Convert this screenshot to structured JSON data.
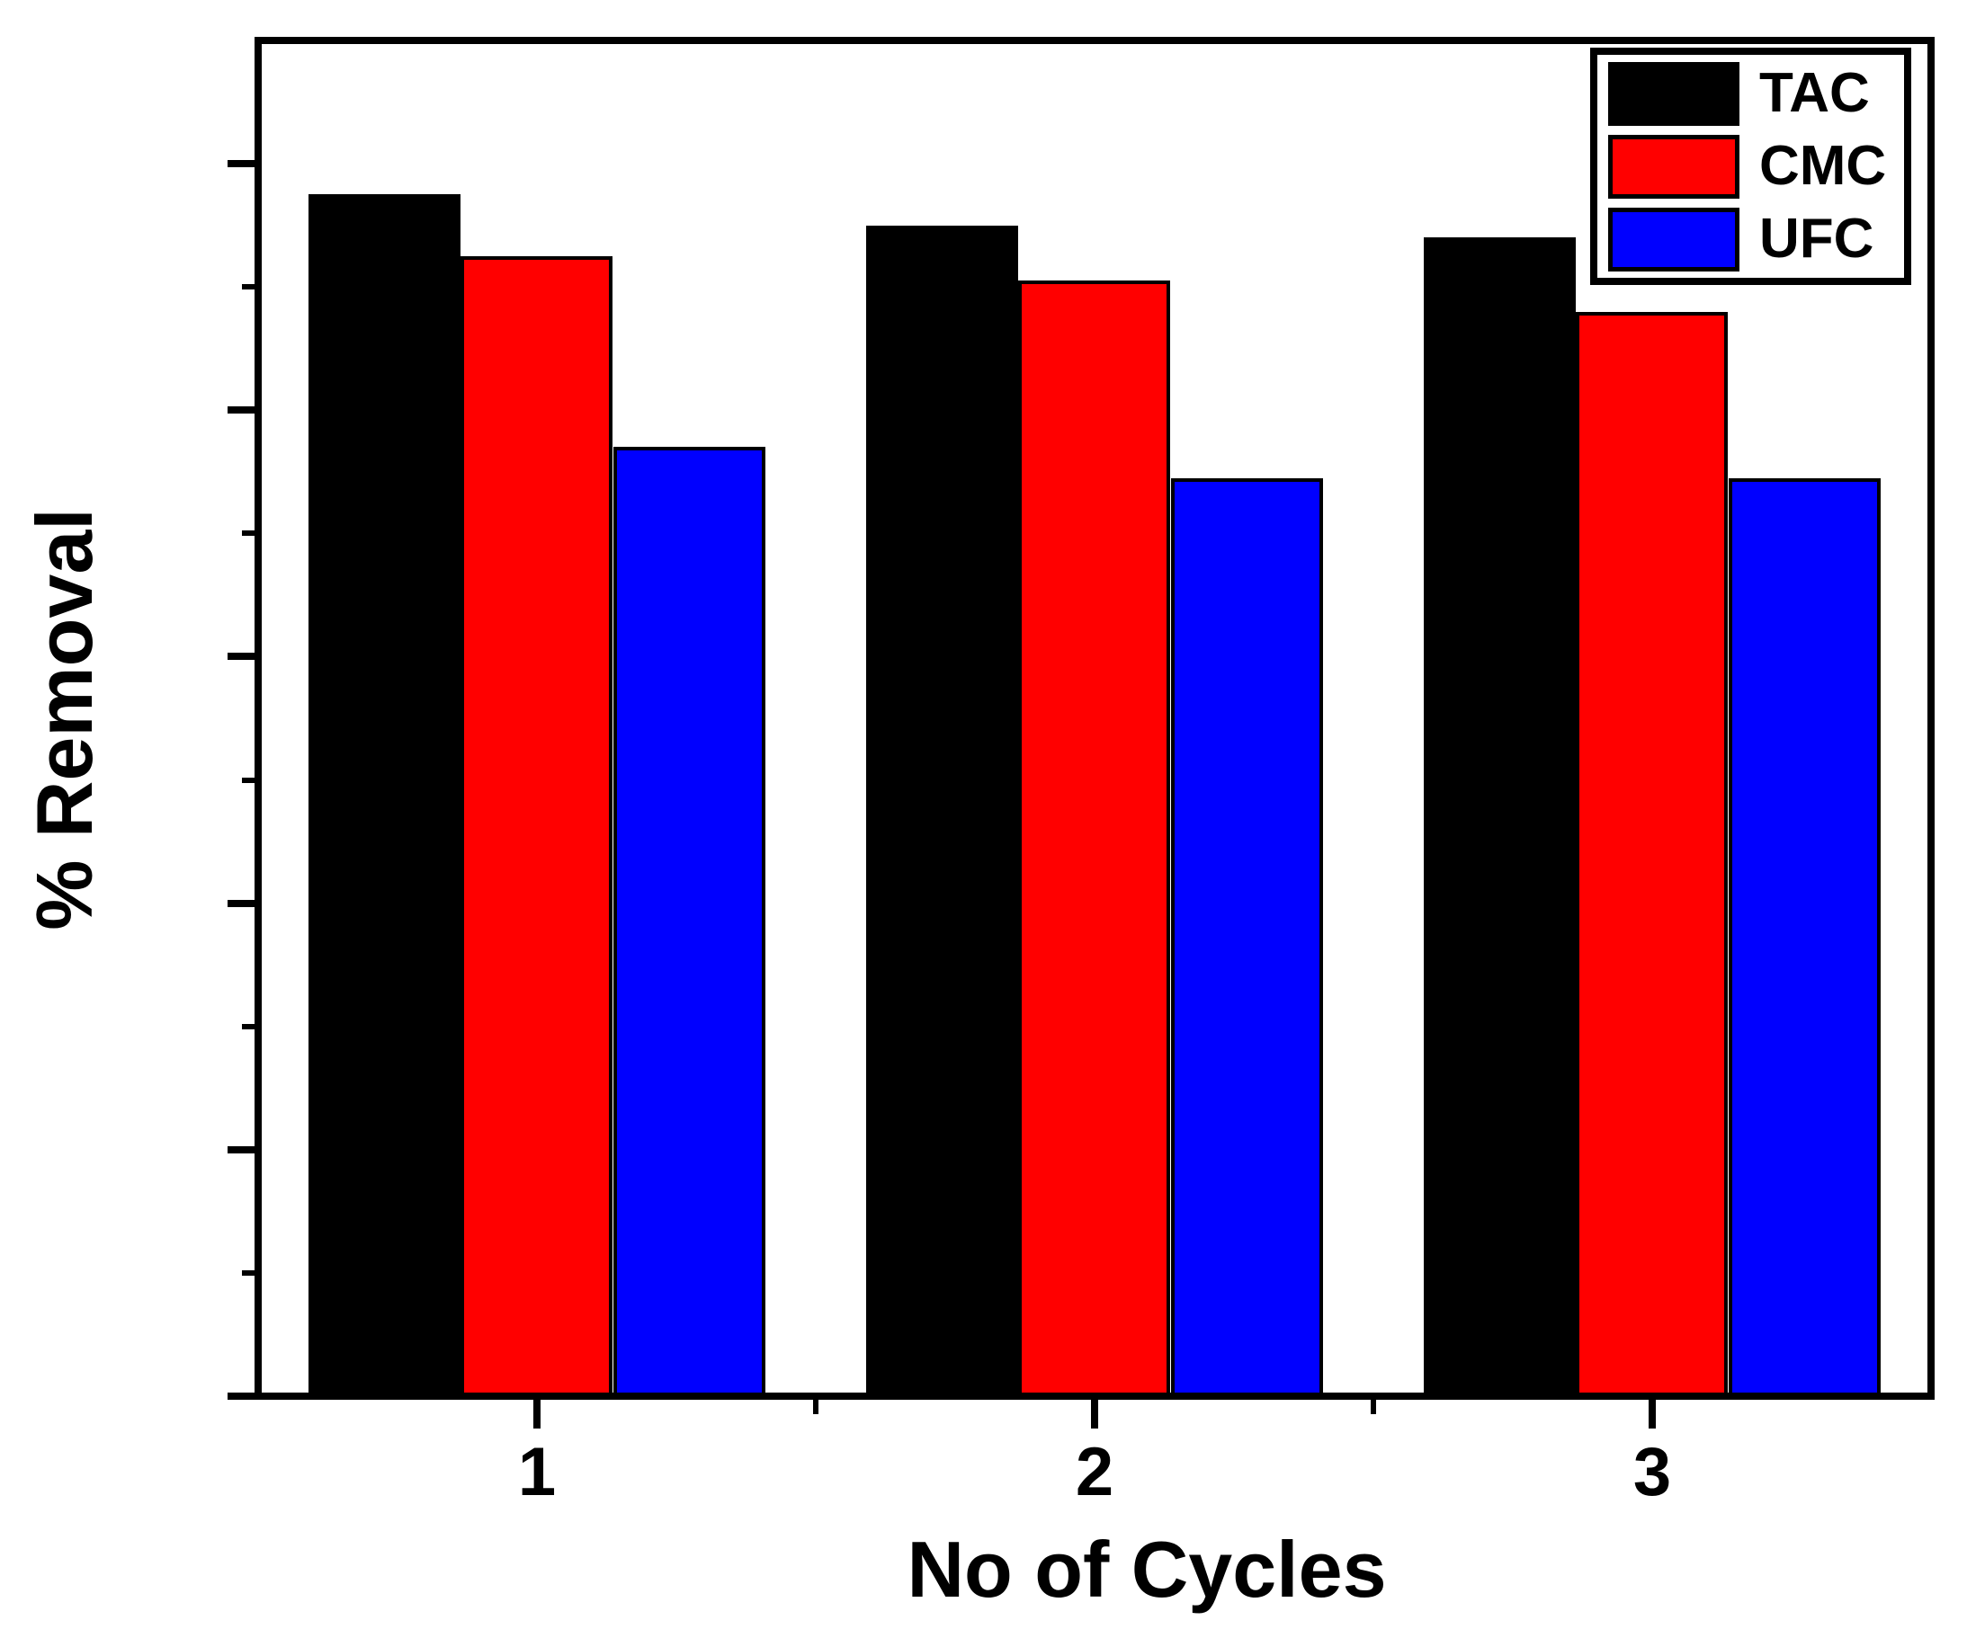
{
  "figure": {
    "background": "#ffffff",
    "axis_color": "#000000"
  },
  "chart_data": {
    "type": "bar",
    "title": "",
    "xlabel": "No of Cycles",
    "ylabel": "% Removal",
    "categories": [
      "1",
      "2",
      "3"
    ],
    "series": [
      {
        "name": "TAC",
        "color": "#000000",
        "values": [
          97.5,
          95.0,
          94.0
        ]
      },
      {
        "name": "CMC",
        "color": "#ff0000",
        "values": [
          92.5,
          90.5,
          88.0
        ]
      },
      {
        "name": "UFC",
        "color": "#0000ff",
        "values": [
          77.0,
          74.5,
          74.5
        ]
      }
    ],
    "xlim": [
      0.5,
      3.5
    ],
    "ylim": [
      0,
      110
    ],
    "x_major_ticks": [
      1,
      2,
      3
    ],
    "x_minor_ticks": [
      1.5,
      2.5
    ],
    "y_major_ticks": [
      0,
      20,
      40,
      60,
      80,
      100
    ],
    "y_minor_ticks": [
      10,
      30,
      50,
      70,
      90
    ],
    "bar_width_units": 0.2726,
    "bar_border_color": "#000000",
    "grid": false,
    "legend_position": "top-right"
  }
}
